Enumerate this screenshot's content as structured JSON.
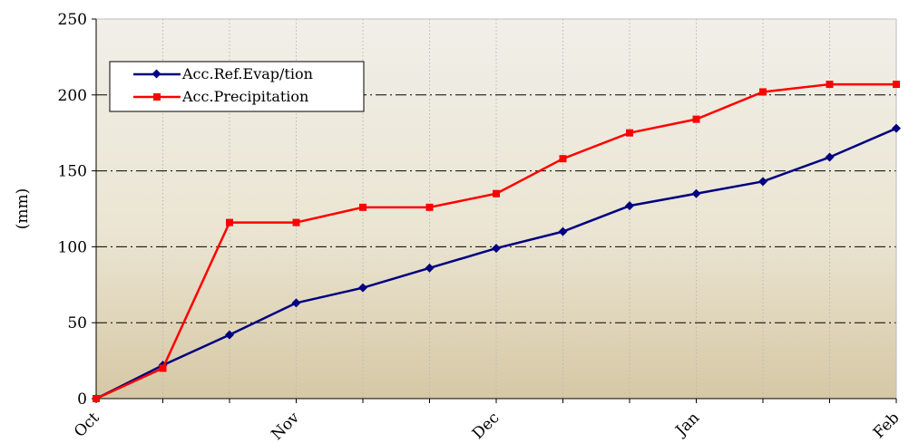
{
  "chart_data": {
    "type": "line",
    "title": "",
    "xlabel": "",
    "ylabel": "(mm)",
    "ylim": [
      0,
      250
    ],
    "yticks": [
      0,
      50,
      100,
      150,
      200,
      250
    ],
    "x_tick_labels": [
      "Oct",
      "Nov",
      "Dec",
      "Jan",
      "Feb"
    ],
    "x_points": 13,
    "x_tick_positions": [
      0,
      3,
      6,
      9,
      12
    ],
    "grid": {
      "horizontal": "dash-dot",
      "vertical": "dotted"
    },
    "legend_position": "top-left",
    "colors": {
      "evap": "#000080",
      "precip": "#ff0000",
      "bg_top": "#efeee6",
      "bg_bottom": "#d6c8a6"
    },
    "series": [
      {
        "name": "Acc.Ref.Evap/tion",
        "color": "#000080",
        "marker": "diamond",
        "values": [
          0,
          22,
          42,
          63,
          73,
          86,
          99,
          110,
          127,
          135,
          143,
          159,
          178
        ]
      },
      {
        "name": "Acc.Precipitation",
        "color": "#ff0000",
        "marker": "square",
        "values": [
          0,
          20,
          116,
          116,
          126,
          126,
          135,
          158,
          175,
          184,
          202,
          207,
          207
        ]
      }
    ]
  }
}
